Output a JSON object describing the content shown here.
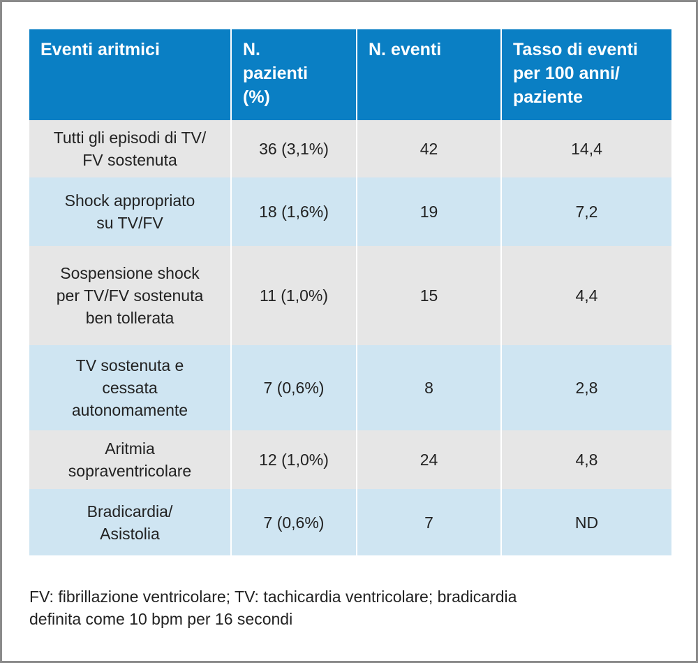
{
  "table": {
    "header": [
      [
        "Eventi aritmici"
      ],
      [
        "N.",
        "pazienti",
        "(%)"
      ],
      [
        "N. eventi"
      ],
      [
        "Tasso di eventi",
        "per 100 anni/",
        "paziente"
      ]
    ],
    "rows": [
      [
        [
          "Tutti gli episodi di TV/",
          "FV sostenuta"
        ],
        [
          "36 (3,1%)"
        ],
        [
          "42"
        ],
        [
          "14,4"
        ]
      ],
      [
        [
          "Shock appropriato",
          "su TV/FV"
        ],
        [
          "18 (1,6%)"
        ],
        [
          "19"
        ],
        [
          "7,2"
        ]
      ],
      [
        [
          "Sospensione shock",
          "per TV/FV sostenuta",
          "ben tollerata"
        ],
        [
          "11 (1,0%)"
        ],
        [
          "15"
        ],
        [
          "4,4"
        ]
      ],
      [
        [
          "TV sostenuta e",
          "cessata",
          "autonomamente"
        ],
        [
          "7 (0,6%)"
        ],
        [
          "8"
        ],
        [
          "2,8"
        ]
      ],
      [
        [
          "Aritmia",
          "sopraventricolare"
        ],
        [
          "12 (1,0%)"
        ],
        [
          "24"
        ],
        [
          "4,8"
        ]
      ],
      [
        [
          "Bradicardia/",
          "Asistolia"
        ],
        [
          "7 (0,6%)"
        ],
        [
          "7"
        ],
        [
          "ND"
        ]
      ]
    ]
  },
  "footnote": [
    "FV: fibrillazione ventricolare; TV: tachicardia ventricolare; bradicardia",
    "definita come 10 bpm per 16 secondi"
  ]
}
